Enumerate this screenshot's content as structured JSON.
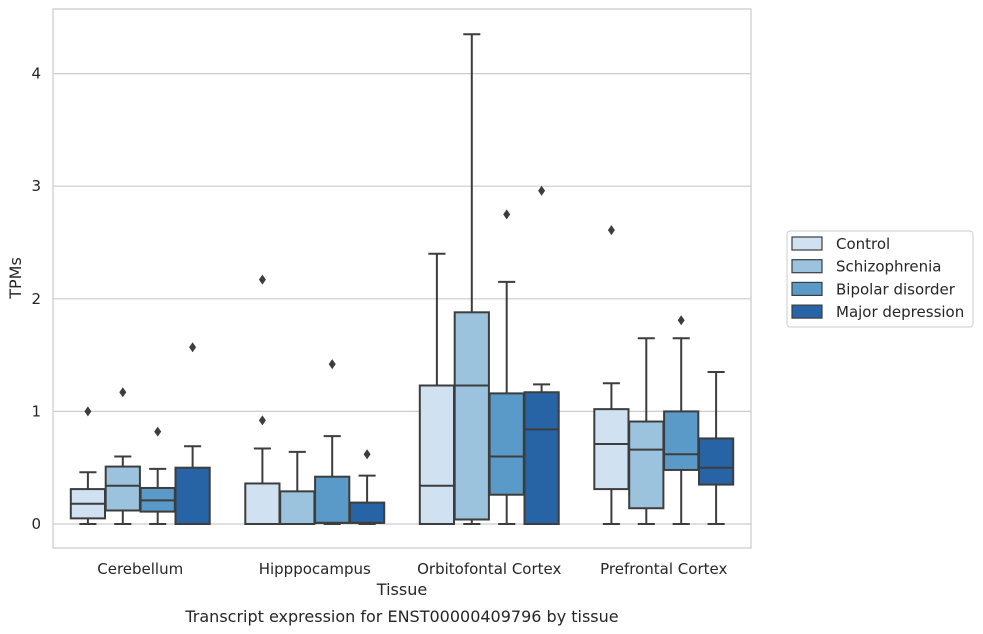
{
  "chart_data": {
    "type": "box",
    "caption": "Transcript expression for ENST00000409796 by tissue",
    "xlabel": "Tissue",
    "ylabel": "TPMs",
    "ylim": [
      -0.22,
      4.57
    ],
    "yticks": [
      0,
      1,
      2,
      3,
      4
    ],
    "grid": "horizontal",
    "legend_position": "right",
    "categories": [
      "Cerebellum",
      "Hipppocampus",
      "Orbitofontal Cortex",
      "Prefrontal Cortex"
    ],
    "series": [
      {
        "name": "Control",
        "color": "#d0e1f2",
        "boxes": [
          {
            "whislo": 0.0,
            "q1": 0.05,
            "med": 0.18,
            "q3": 0.31,
            "whishi": 0.46,
            "fliers": [
              1.0
            ]
          },
          {
            "whislo": 0.0,
            "q1": 0.0,
            "med": 0.0,
            "q3": 0.36,
            "whishi": 0.67,
            "fliers": [
              0.92,
              2.17
            ]
          },
          {
            "whislo": 0.0,
            "q1": 0.0,
            "med": 0.34,
            "q3": 1.23,
            "whishi": 2.4,
            "fliers": []
          },
          {
            "whislo": 0.0,
            "q1": 0.31,
            "med": 0.71,
            "q3": 1.02,
            "whishi": 1.25,
            "fliers": [
              2.61
            ]
          }
        ]
      },
      {
        "name": "Schizophrenia",
        "color": "#9cc3dd",
        "boxes": [
          {
            "whislo": 0.0,
            "q1": 0.12,
            "med": 0.34,
            "q3": 0.51,
            "whishi": 0.6,
            "fliers": [
              1.17
            ]
          },
          {
            "whislo": 0.0,
            "q1": 0.0,
            "med": 0.0,
            "q3": 0.29,
            "whishi": 0.64,
            "fliers": []
          },
          {
            "whislo": 0.0,
            "q1": 0.04,
            "med": 1.23,
            "q3": 1.88,
            "whishi": 4.35,
            "fliers": []
          },
          {
            "whislo": 0.0,
            "q1": 0.14,
            "med": 0.66,
            "q3": 0.91,
            "whishi": 1.65,
            "fliers": []
          }
        ]
      },
      {
        "name": "Bipolar disorder",
        "color": "#5a9ac8",
        "boxes": [
          {
            "whislo": 0.0,
            "q1": 0.11,
            "med": 0.21,
            "q3": 0.32,
            "whishi": 0.49,
            "fliers": [
              0.82
            ]
          },
          {
            "whislo": 0.0,
            "q1": 0.01,
            "med": 0.01,
            "q3": 0.42,
            "whishi": 0.78,
            "fliers": [
              1.42
            ]
          },
          {
            "whislo": 0.0,
            "q1": 0.26,
            "med": 0.6,
            "q3": 1.16,
            "whishi": 2.15,
            "fliers": [
              2.75
            ]
          },
          {
            "whislo": 0.0,
            "q1": 0.48,
            "med": 0.62,
            "q3": 1.0,
            "whishi": 1.65,
            "fliers": [
              1.81
            ]
          }
        ]
      },
      {
        "name": "Major depression",
        "color": "#2664a5",
        "boxes": [
          {
            "whislo": 0.0,
            "q1": 0.0,
            "med": 0.0,
            "q3": 0.5,
            "whishi": 0.69,
            "fliers": [
              1.57
            ]
          },
          {
            "whislo": 0.0,
            "q1": 0.01,
            "med": 0.01,
            "q3": 0.19,
            "whishi": 0.43,
            "fliers": [
              0.62
            ]
          },
          {
            "whislo": 0.0,
            "q1": 0.0,
            "med": 0.84,
            "q3": 1.17,
            "whishi": 1.24,
            "fliers": [
              2.96
            ]
          },
          {
            "whislo": 0.0,
            "q1": 0.35,
            "med": 0.5,
            "q3": 0.76,
            "whishi": 1.35,
            "fliers": []
          }
        ]
      }
    ]
  }
}
